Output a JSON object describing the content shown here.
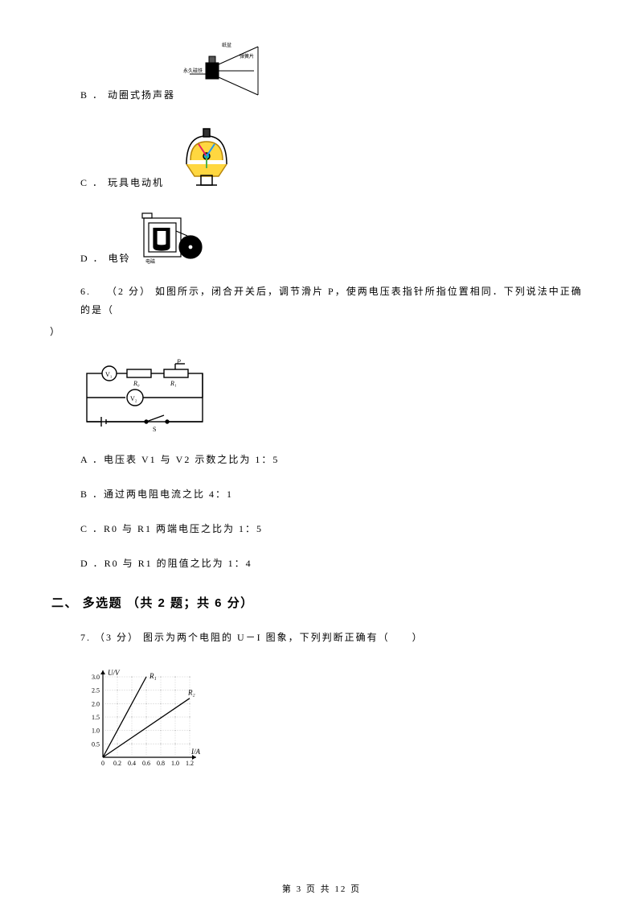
{
  "optB": {
    "label": "B ．",
    "text": "动圈式扬声器"
  },
  "optC": {
    "label": "C ．",
    "text": "玩具电动机"
  },
  "optD": {
    "label": "D ．",
    "text": "电铃"
  },
  "q6": {
    "number": "6.",
    "points": "（2 分）",
    "text": "如图所示，闭合开关后，调节滑片 P，使两电压表指针所指位置相同．下列说法中正确的是（",
    "close": "）"
  },
  "q6_options": {
    "A": "A ．电压表 V1 与 V2 示数之比为 1：5",
    "B": "B ．通过两电阻电流之比 4：1",
    "C": "C ．R0 与 R1 两端电压之比为 1：5",
    "D": "D ．R0 与 R1 的阻值之比为 1：4"
  },
  "section2": "二、 多选题 （共 2 题；共 6 分）",
  "q7": {
    "number": "7.",
    "points": "（3 分）",
    "text": "图示为两个电阻的 U－I 图象，下列判断正确有（　　）"
  },
  "graph": {
    "ylabel": "U/V",
    "xlabel": "I/A",
    "yticks": [
      "0.5",
      "1.0",
      "1.5",
      "2.0",
      "2.5",
      "3.0"
    ],
    "xticks": [
      "0",
      "0.2",
      "0.4",
      "0.6",
      "0.8",
      "1.0",
      "1.2"
    ],
    "series": [
      {
        "label": "R₁",
        "color": "#000000"
      },
      {
        "label": "R₂",
        "color": "#000000"
      }
    ],
    "points1": [
      [
        0,
        0
      ],
      [
        0.6,
        3.0
      ]
    ],
    "points2": [
      [
        0,
        0
      ],
      [
        1.2,
        2.2
      ]
    ],
    "axis_color": "#000000",
    "grid_color": "#999999",
    "background_color": "#ffffff",
    "font_size": 8
  },
  "footer": {
    "left": "第 ",
    "page": "3",
    "mid": " 页 共 ",
    "total": "12",
    "right": " 页"
  }
}
